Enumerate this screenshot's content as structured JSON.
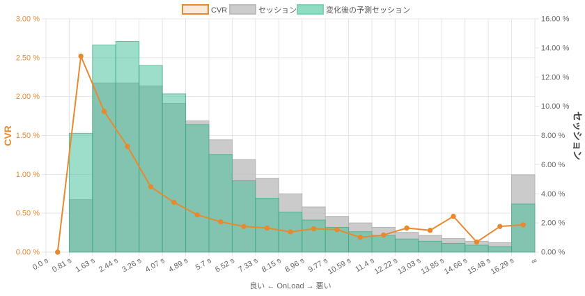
{
  "chart_data": {
    "type": "bar",
    "legend": {
      "position": "top",
      "entries": [
        {
          "name": "CVR",
          "color": "#e8892f"
        },
        {
          "name": "セッション",
          "color": "#c9c9c9"
        },
        {
          "name": "変化後の予測セッション",
          "color": "#8fdcc3"
        }
      ]
    },
    "x_tick_labels": [
      "0.0 s",
      "0.81 s",
      "1.63 s",
      "2.44 s",
      "3.26 s",
      "4.07 s",
      "4.89 s",
      "5.7 s",
      "6.52 s",
      "7.33 s",
      "8.15 s",
      "8.96 s",
      "9.77 s",
      "10.59 s",
      "11.4 s",
      "12.22 s",
      "13.03 s",
      "13.85 s",
      "14.66 s",
      "15.48 s",
      "16.29 s",
      "∞"
    ],
    "xlabel": "良い ← OnLoad → 悪い",
    "y_left": {
      "label": "CVR",
      "range": [
        0,
        3
      ],
      "ticks": [
        0,
        0.5,
        1,
        1.5,
        2,
        2.5,
        3
      ],
      "tick_labels": [
        "0.00 %",
        "0.50 %",
        "1.00 %",
        "1.50 %",
        "2.00 %",
        "2.50 %",
        "3.00 %"
      ],
      "color": "#e8892f"
    },
    "y_right": {
      "label": "セッション",
      "range": [
        0,
        16
      ],
      "ticks": [
        0,
        2,
        4,
        6,
        8,
        10,
        12,
        14,
        16
      ],
      "tick_labels": [
        "0.00 %",
        "2.00 %",
        "4.00 %",
        "6.00 %",
        "8.00 %",
        "10.00 %",
        "12.00 %",
        "14.00 %",
        "16.00 %"
      ],
      "color": "#555555"
    },
    "series": [
      {
        "name": "セッション",
        "type": "bar",
        "axis": "right",
        "values": [
          0,
          3.6,
          11.6,
          11.6,
          11.4,
          10.2,
          9.0,
          7.7,
          6.35,
          5.05,
          4.0,
          3.1,
          2.45,
          2.0,
          1.7,
          1.35,
          1.15,
          0.93,
          0.75,
          0.65,
          5.3
        ]
      },
      {
        "name": "変化後の予測セッション",
        "type": "bar",
        "axis": "right",
        "values": [
          0,
          8.15,
          14.2,
          14.45,
          12.8,
          10.85,
          8.75,
          6.7,
          4.9,
          3.7,
          2.75,
          2.2,
          1.7,
          1.4,
          1.15,
          0.9,
          0.75,
          0.6,
          0.48,
          0.38,
          3.3
        ]
      },
      {
        "name": "CVR",
        "type": "line",
        "axis": "left",
        "values": [
          0.0,
          2.52,
          1.81,
          1.36,
          0.84,
          0.64,
          0.48,
          0.39,
          0.33,
          0.31,
          0.26,
          0.3,
          0.29,
          0.19,
          0.22,
          0.31,
          0.28,
          0.46,
          0.13,
          0.33,
          0.35
        ]
      }
    ],
    "grid": true
  }
}
